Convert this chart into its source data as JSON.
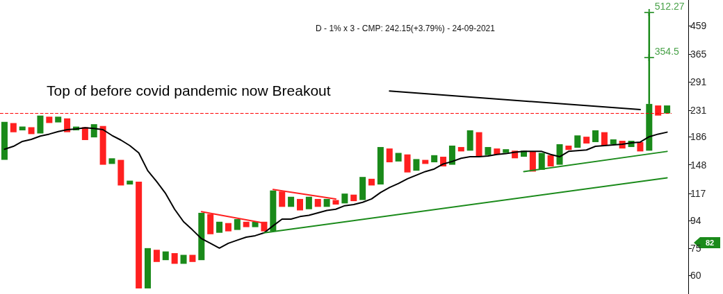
{
  "chart_data": {
    "type": "bar",
    "title": "D - 1% x 3 - CMP: 242.15(+3.79%) - 24-09-2021",
    "categories": [
      null,
      null,
      null,
      null,
      null,
      null,
      null,
      null,
      null,
      null,
      null,
      null,
      null,
      null,
      null,
      null,
      null,
      null,
      null,
      null,
      null,
      null,
      null,
      null,
      null,
      null,
      null,
      null,
      null,
      null,
      null,
      null,
      null,
      null,
      null,
      null,
      null,
      null,
      null,
      null,
      null,
      null,
      null,
      null,
      null,
      null,
      null,
      null,
      null,
      null,
      null,
      null,
      null,
      null,
      null,
      null,
      null,
      null,
      null,
      null,
      null,
      null,
      null,
      null,
      null,
      null,
      null,
      null,
      null,
      null,
      null,
      null,
      null,
      null,
      null
    ],
    "series": [
      {
        "errors": [
          null,
          null,
          null,
          null,
          null,
          null,
          null,
          null,
          null,
          null,
          null,
          null,
          null,
          null,
          null,
          null,
          null,
          null,
          null,
          null,
          null,
          null,
          null,
          null,
          null,
          null,
          null,
          null,
          null,
          null,
          null,
          null,
          null,
          null,
          null,
          null,
          null,
          null,
          null,
          null,
          null,
          null,
          null,
          null,
          null,
          null,
          null,
          null,
          null,
          null,
          null,
          null,
          null,
          null,
          null,
          null,
          null,
          null,
          null,
          null,
          null,
          null,
          null,
          null,
          null,
          null,
          null,
          null,
          null,
          null,
          null,
          null,
          [
            243,
            512.27
          ],
          null,
          null
        ],
        "base": [
          154,
          193,
          196,
          190,
          191,
          208,
          209,
          193,
          196,
          181,
          185,
          148,
          149,
          125,
          126,
          54,
          54,
          67,
          68,
          66,
          66,
          67,
          68,
          84,
          85,
          86,
          87,
          89,
          89,
          86,
          86,
          105,
          105,
          102,
          103,
          105,
          105,
          107,
          108,
          110,
          111,
          125,
          126,
          151,
          152,
          139,
          141,
          149,
          151,
          146,
          148,
          165,
          166,
          158,
          160,
          161,
          163,
          156,
          158,
          140,
          142,
          146,
          148,
          167,
          170,
          176,
          178,
          173,
          175,
          169,
          171,
          165,
          166,
          221,
          225
        ],
        "values": [
          56,
          15,
          6,
          11,
          30,
          11,
          10,
          23,
          6,
          20,
          21,
          55,
          7,
          29,
          4,
          75,
          21,
          7,
          5,
          6,
          5,
          4,
          32,
          15,
          8,
          6,
          8,
          4,
          4,
          7,
          34,
          14,
          9,
          10,
          11,
          7,
          7,
          4,
          9,
          6,
          23,
          7,
          45,
          18,
          11,
          22,
          14,
          5,
          9,
          12,
          25,
          6,
          30,
          35,
          11,
          8,
          5,
          10,
          8,
          25,
          21,
          14,
          27,
          6,
          18,
          10,
          18,
          20,
          7,
          11,
          9,
          13,
          77,
          19,
          15
        ],
        "colors": [
          "#1a8a1a",
          "#ff2020",
          "#1a8a1a",
          "#ff2020",
          "#1a8a1a",
          "#ff2020",
          "#1a8a1a",
          "#ff2020",
          "#1a8a1a",
          "#ff2020",
          "#1a8a1a",
          "#ff2020",
          "#1a8a1a",
          "#ff2020",
          "#1a8a1a",
          "#ff2020",
          "#1a8a1a",
          "#ff2020",
          "#1a8a1a",
          "#ff2020",
          "#1a8a1a",
          "#ff2020",
          "#1a8a1a",
          "#ff2020",
          "#1a8a1a",
          "#ff2020",
          "#1a8a1a",
          "#ff2020",
          "#1a8a1a",
          "#ff2020",
          "#1a8a1a",
          "#ff2020",
          "#1a8a1a",
          "#ff2020",
          "#1a8a1a",
          "#ff2020",
          "#1a8a1a",
          "#ff2020",
          "#1a8a1a",
          "#ff2020",
          "#1a8a1a",
          "#ff2020",
          "#1a8a1a",
          "#ff2020",
          "#1a8a1a",
          "#ff2020",
          "#1a8a1a",
          "#ff2020",
          "#1a8a1a",
          "#ff2020",
          "#1a8a1a",
          "#ff2020",
          "#1a8a1a",
          "#ff2020",
          "#1a8a1a",
          "#ff2020",
          "#1a8a1a",
          "#ff2020",
          "#1a8a1a",
          "#ff2020",
          "#1a8a1a",
          "#ff2020",
          "#1a8a1a",
          "#ff2020",
          "#1a8a1a",
          "#ff2020",
          "#1a8a1a",
          "#ff2020",
          "#1a8a1a",
          "#ff2020",
          "#1a8a1a",
          "#ff2020",
          "#1a8a1a",
          "#ff2020",
          "#1a8a1a"
        ]
      },
      {
        "type": "line",
        "color": "#000000",
        "values": [
          168,
          172,
          179,
          182,
          187,
          190,
          194,
          197,
          198,
          200,
          199,
          197,
          188,
          181,
          173,
          163,
          141,
          129,
          117,
          103,
          93,
          87,
          81,
          78,
          75,
          78,
          80,
          82,
          83,
          85,
          90,
          95,
          95,
          97,
          98,
          100,
          102,
          103,
          106,
          107,
          109,
          112,
          118,
          123,
          127,
          132,
          136,
          140,
          143,
          149,
          152,
          156,
          158,
          158,
          159,
          161,
          162,
          164,
          165,
          165,
          165,
          161,
          158,
          165,
          166,
          167,
          172,
          173,
          174,
          175,
          177,
          178,
          186,
          190,
          193
        ]
      },
      {
        "type": "line",
        "color": "#ff2020",
        "values": [
          null,
          null,
          null,
          null,
          null,
          null,
          null,
          null,
          null,
          null,
          null,
          null,
          null,
          null,
          null,
          null,
          null,
          null,
          null,
          null,
          null,
          null,
          101,
          null,
          null,
          null,
          null,
          null,
          null,
          92,
          null,
          null,
          null,
          null,
          null,
          null,
          null,
          null,
          null,
          null,
          null,
          null,
          null,
          null,
          null,
          null,
          null,
          null,
          null,
          null,
          null,
          null,
          null,
          null,
          null,
          null,
          null,
          null,
          null,
          null,
          null,
          null,
          null,
          null,
          null,
          null,
          null,
          null,
          null,
          null,
          null,
          null,
          null,
          null,
          null
        ]
      },
      {
        "type": "line",
        "color": "#ff2020",
        "values": [
          null,
          null,
          null,
          null,
          null,
          null,
          null,
          null,
          null,
          null,
          null,
          null,
          null,
          null,
          null,
          null,
          null,
          null,
          null,
          null,
          null,
          null,
          null,
          null,
          null,
          null,
          null,
          null,
          null,
          null,
          121,
          null,
          null,
          null,
          null,
          null,
          null,
          112,
          null,
          null,
          null,
          null,
          null,
          null,
          null,
          null,
          null,
          null,
          null,
          null,
          null,
          null,
          null,
          null,
          null,
          null,
          null,
          null,
          null,
          null,
          null,
          null,
          null,
          null,
          null,
          null,
          null,
          null,
          null,
          null,
          null,
          null,
          null,
          null,
          null
        ]
      },
      {
        "type": "line",
        "color": "#1a8a1a",
        "values": [
          null,
          null,
          null,
          null,
          null,
          null,
          null,
          null,
          null,
          null,
          null,
          null,
          null,
          null,
          null,
          null,
          null,
          null,
          null,
          null,
          null,
          null,
          null,
          null,
          null,
          null,
          null,
          null,
          null,
          85,
          null,
          null,
          null,
          null,
          null,
          null,
          null,
          null,
          null,
          null,
          null,
          null,
          null,
          null,
          null,
          null,
          null,
          null,
          null,
          null,
          null,
          null,
          null,
          null,
          null,
          null,
          null,
          null,
          null,
          null,
          null,
          null,
          null,
          null,
          null,
          null,
          null,
          null,
          null,
          null,
          null,
          null,
          null,
          null,
          133
        ]
      },
      {
        "type": "line",
        "color": "#000000",
        "values": [
          null,
          null,
          null,
          null,
          null,
          null,
          null,
          null,
          null,
          null,
          null,
          null,
          null,
          null,
          null,
          null,
          null,
          null,
          null,
          null,
          null,
          null,
          null,
          null,
          null,
          null,
          null,
          null,
          null,
          null,
          null,
          null,
          null,
          null,
          null,
          null,
          null,
          null,
          null,
          null,
          null,
          null,
          null,
          270,
          null,
          null,
          null,
          null,
          null,
          null,
          null,
          null,
          null,
          null,
          null,
          null,
          null,
          null,
          null,
          null,
          null,
          null,
          null,
          null,
          null,
          null,
          null,
          null,
          null,
          null,
          null,
          232,
          null,
          null,
          null
        ]
      },
      {
        "type": "scatter",
        "color": "#1a8a1a",
        "values": [
          null,
          null,
          null,
          null,
          null,
          null,
          null,
          null,
          null,
          null,
          null,
          null,
          null,
          null,
          null,
          null,
          null,
          null,
          null,
          null,
          null,
          null,
          null,
          null,
          null,
          null,
          null,
          null,
          null,
          null,
          null,
          null,
          null,
          null,
          null,
          null,
          null,
          null,
          null,
          null,
          null,
          null,
          null,
          null,
          null,
          null,
          null,
          null,
          null,
          null,
          null,
          null,
          null,
          null,
          null,
          null,
          null,
          null,
          null,
          null,
          null,
          null,
          null,
          null,
          null,
          null,
          null,
          null,
          null,
          null,
          null,
          null,
          354.5,
          null,
          null
        ],
        "value_labels": [
          null,
          null,
          null,
          null,
          null,
          null,
          null,
          null,
          null,
          null,
          null,
          null,
          null,
          null,
          null,
          null,
          null,
          null,
          null,
          null,
          null,
          null,
          null,
          null,
          null,
          null,
          null,
          null,
          null,
          null,
          null,
          null,
          null,
          null,
          null,
          null,
          null,
          null,
          null,
          null,
          null,
          null,
          null,
          null,
          null,
          null,
          null,
          null,
          null,
          null,
          null,
          null,
          null,
          null,
          null,
          null,
          null,
          null,
          null,
          null,
          null,
          null,
          null,
          null,
          null,
          null,
          null,
          null,
          null,
          null,
          null,
          null,
          "354.5",
          null,
          null
        ],
        "marker": "cross"
      },
      {
        "type": "scatter",
        "color": "#1a8a1a",
        "values": [
          null,
          null,
          null,
          null,
          null,
          null,
          null,
          null,
          null,
          null,
          null,
          null,
          null,
          null,
          null,
          null,
          null,
          null,
          null,
          null,
          null,
          null,
          null,
          null,
          null,
          null,
          null,
          null,
          null,
          null,
          null,
          null,
          null,
          null,
          null,
          null,
          null,
          null,
          null,
          null,
          null,
          null,
          null,
          null,
          null,
          null,
          null,
          null,
          null,
          null,
          null,
          null,
          null,
          null,
          null,
          null,
          null,
          null,
          null,
          null,
          null,
          null,
          null,
          null,
          null,
          null,
          null,
          null,
          null,
          null,
          null,
          null,
          512.27,
          null,
          null
        ],
        "value_labels": [
          null,
          null,
          null,
          null,
          null,
          null,
          null,
          null,
          null,
          null,
          null,
          null,
          null,
          null,
          null,
          null,
          null,
          null,
          null,
          null,
          null,
          null,
          null,
          null,
          null,
          null,
          null,
          null,
          null,
          null,
          null,
          null,
          null,
          null,
          null,
          null,
          null,
          null,
          null,
          null,
          null,
          null,
          null,
          null,
          null,
          null,
          null,
          null,
          null,
          null,
          null,
          null,
          null,
          null,
          null,
          null,
          null,
          null,
          null,
          null,
          null,
          null,
          null,
          null,
          null,
          null,
          null,
          null,
          null,
          null,
          null,
          null,
          "512.27",
          null,
          null
        ],
        "marker": "cross"
      },
      {
        "type": "line",
        "color": "#1a8a1a",
        "values": [
          null,
          null,
          null,
          null,
          null,
          null,
          null,
          null,
          null,
          null,
          null,
          null,
          null,
          null,
          null,
          null,
          null,
          null,
          null,
          null,
          null,
          null,
          null,
          null,
          null,
          null,
          null,
          null,
          null,
          null,
          null,
          null,
          null,
          null,
          null,
          null,
          null,
          null,
          null,
          null,
          null,
          null,
          null,
          null,
          null,
          null,
          null,
          null,
          null,
          null,
          null,
          null,
          null,
          null,
          null,
          null,
          null,
          null,
          140,
          null,
          null,
          null,
          null,
          null,
          null,
          null,
          null,
          null,
          null,
          null,
          null,
          null,
          null,
          null,
          165
        ]
      }
    ],
    "ylim": [
      51.6,
      567
    ],
    "yticks": [
      60,
      75,
      94,
      117,
      148,
      186,
      231,
      291,
      365,
      459
    ],
    "log": true,
    "grid": false,
    "tick_labels": "y",
    "marker": "none",
    "ref_lines": [
      {
        "axis": "y",
        "value": 225,
        "color": "#ff0000",
        "line_style": "dashed"
      }
    ],
    "annotations": [
      "Top of before covid pandemic now Breakout",
      "82"
    ]
  }
}
